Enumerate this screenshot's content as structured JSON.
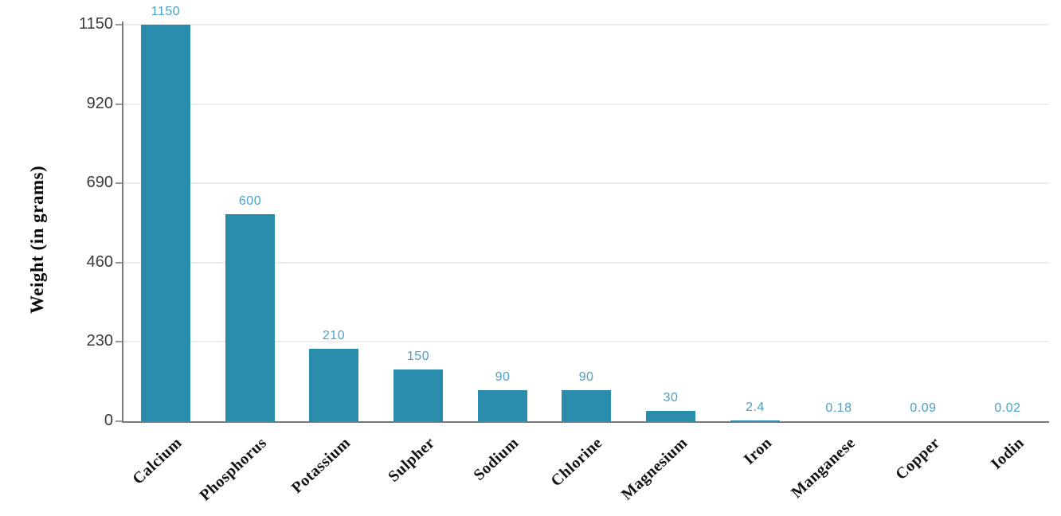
{
  "chart_data": {
    "type": "bar",
    "categories": [
      "Calcium",
      "Phosphorus",
      "Potassium",
      "Sulpher",
      "Sodium",
      "Chlorine",
      "Magnesium",
      "Iron",
      "Manganese",
      "Copper",
      "Iodin"
    ],
    "values": [
      1150,
      600,
      210,
      150,
      90,
      90,
      30,
      2.4,
      0.18,
      0.09,
      0.02
    ],
    "value_labels": [
      "1150",
      "600",
      "210",
      "150",
      "90",
      "90",
      "30",
      "2.4",
      "0.18",
      "0.09",
      "0.02"
    ],
    "title": "",
    "xlabel": "",
    "ylabel": "Weight (in grams)",
    "ylim": [
      0,
      1150
    ],
    "yticks": [
      0,
      230,
      460,
      690,
      920,
      1150
    ],
    "grid": true,
    "legend_position": "none",
    "category_label_rotation_deg": -43,
    "colors": {
      "bar": "#2a8cad",
      "value_label": "#4aa0c8",
      "axis": "#7a7a7a",
      "tick_mark": "#9a9a9a",
      "gridline": "#ececec",
      "y_tick_label": "#3a3a3a",
      "category_label": "#121212",
      "background": "#ffffff"
    }
  }
}
